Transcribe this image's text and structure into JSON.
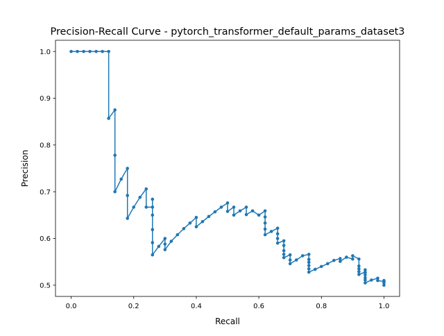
{
  "chart_data": {
    "type": "line",
    "title": "Precision-Recall Curve - pytorch_transformer_default_params_dataset3",
    "xlabel": "Recall",
    "ylabel": "Precision",
    "xlim": [
      -0.05,
      1.05
    ],
    "ylim": [
      0.476,
      1.024
    ],
    "xticks": [
      0.0,
      0.2,
      0.4,
      0.6,
      0.8,
      1.0
    ],
    "xtick_labels": [
      "0.0",
      "0.2",
      "0.4",
      "0.6",
      "0.8",
      "1.0"
    ],
    "yticks": [
      0.5,
      0.6,
      0.7,
      0.8,
      0.9,
      1.0
    ],
    "ytick_labels": [
      "0.5",
      "0.6",
      "0.7",
      "0.8",
      "0.9",
      "1.0"
    ],
    "grid": false,
    "line_color": "#1f77b4",
    "series": [
      {
        "x": [
          1.0,
          1.0,
          1.0,
          1.0,
          0.98,
          0.98,
          0.96,
          0.94,
          0.94,
          0.94,
          0.94,
          0.94,
          0.94,
          0.94,
          0.92,
          0.92,
          0.92,
          0.92,
          0.92,
          0.9,
          0.9,
          0.88,
          0.86,
          0.86,
          0.84,
          0.82,
          0.8,
          0.78,
          0.76,
          0.76,
          0.76,
          0.76,
          0.76,
          0.76,
          0.74,
          0.72,
          0.7,
          0.7,
          0.7,
          0.68,
          0.68,
          0.68,
          0.68,
          0.68,
          0.66,
          0.66,
          0.66,
          0.66,
          0.64,
          0.62,
          0.62,
          0.62,
          0.62,
          0.62,
          0.6,
          0.58,
          0.56,
          0.56,
          0.54,
          0.52,
          0.52,
          0.5,
          0.5,
          0.48,
          0.46,
          0.44,
          0.42,
          0.4,
          0.4,
          0.38,
          0.36,
          0.34,
          0.32,
          0.3,
          0.3,
          0.3,
          0.28,
          0.26,
          0.26,
          0.26,
          0.26,
          0.26,
          0.26,
          0.24,
          0.24,
          0.22,
          0.2,
          0.18,
          0.18,
          0.18,
          0.16,
          0.14,
          0.14,
          0.14,
          0.12,
          0.12,
          0.1,
          0.08,
          0.06,
          0.04,
          0.02,
          0.0
        ],
        "y": [
          0.5,
          0.505,
          0.51,
          0.508,
          0.51,
          0.515,
          0.511,
          0.505,
          0.511,
          0.516,
          0.522,
          0.527,
          0.533,
          0.528,
          0.523,
          0.529,
          0.535,
          0.541,
          0.556,
          0.563,
          0.556,
          0.56,
          0.551,
          0.557,
          0.553,
          0.546,
          0.54,
          0.534,
          0.528,
          0.535,
          0.542,
          0.549,
          0.555,
          0.566,
          0.563,
          0.554,
          0.546,
          0.554,
          0.565,
          0.559,
          0.566,
          0.574,
          0.585,
          0.595,
          0.59,
          0.6,
          0.61,
          0.622,
          0.615,
          0.608,
          0.62,
          0.633,
          0.646,
          0.659,
          0.65,
          0.659,
          0.651,
          0.667,
          0.659,
          0.65,
          0.667,
          0.658,
          0.676,
          0.667,
          0.657,
          0.647,
          0.636,
          0.625,
          0.645,
          0.633,
          0.621,
          0.608,
          0.594,
          0.576,
          0.588,
          0.6,
          0.583,
          0.565,
          0.591,
          0.619,
          0.65,
          0.684,
          0.667,
          0.667,
          0.706,
          0.688,
          0.667,
          0.643,
          0.692,
          0.75,
          0.727,
          0.7,
          0.778,
          0.875,
          0.857,
          1.0,
          1.0,
          1.0,
          1.0,
          1.0,
          1.0,
          1.0
        ]
      }
    ]
  }
}
